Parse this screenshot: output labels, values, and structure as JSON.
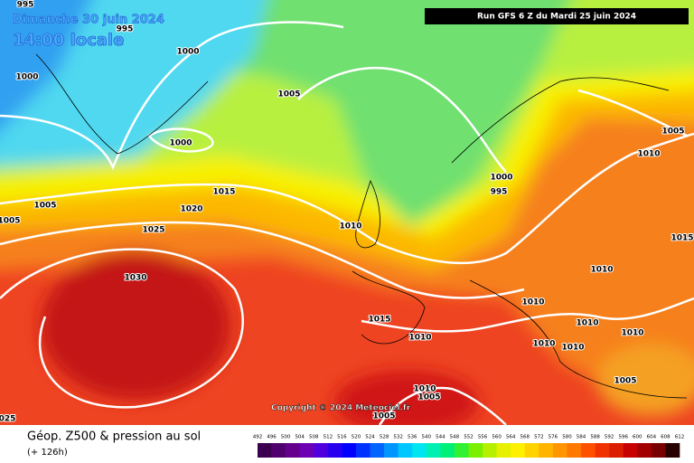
{
  "header": {
    "date": "Dimanche 30 juin 2024",
    "time": "14:00 locale",
    "run": "Run GFS 6 Z du Mardi 25 juin 2024"
  },
  "copyright": "Copyright © 2024 Meteociel.fr",
  "footer": {
    "title": "Géop. Z500 & pression au sol",
    "lead": "(+ 126h)"
  },
  "isobar_labels": [
    "995",
    "995",
    "1000",
    "1000",
    "1005",
    "1000",
    "1005",
    "1010",
    "1000",
    "995",
    "1015",
    "1005",
    "1020",
    "1010",
    "1025",
    "1005",
    "1015",
    "1010",
    "1030",
    "1010",
    "1015",
    "1010",
    "1010",
    "1010",
    "1010",
    "1010",
    "1005",
    "1010",
    "1005",
    "1005",
    "025"
  ],
  "scale": {
    "labels": [
      "492",
      "496",
      "500",
      "504",
      "508",
      "512",
      "516",
      "520",
      "524",
      "528",
      "532",
      "536",
      "540",
      "544",
      "548",
      "552",
      "556",
      "560",
      "564",
      "568",
      "572",
      "576",
      "580",
      "584",
      "588",
      "592",
      "596",
      "600",
      "604",
      "608",
      "612"
    ],
    "colors": [
      "#3c0050",
      "#50006e",
      "#64008c",
      "#6e00b4",
      "#5000dc",
      "#2800f0",
      "#0000ff",
      "#0032ff",
      "#0064ff",
      "#0096ff",
      "#00c8ff",
      "#00e6f0",
      "#00f0b4",
      "#00f078",
      "#32f032",
      "#78f000",
      "#b4f000",
      "#e6f000",
      "#fff000",
      "#ffd200",
      "#ffb400",
      "#ff9600",
      "#ff7800",
      "#ff5000",
      "#f03200",
      "#dc1e00",
      "#c80000",
      "#a00000",
      "#780000",
      "#280000"
    ]
  }
}
